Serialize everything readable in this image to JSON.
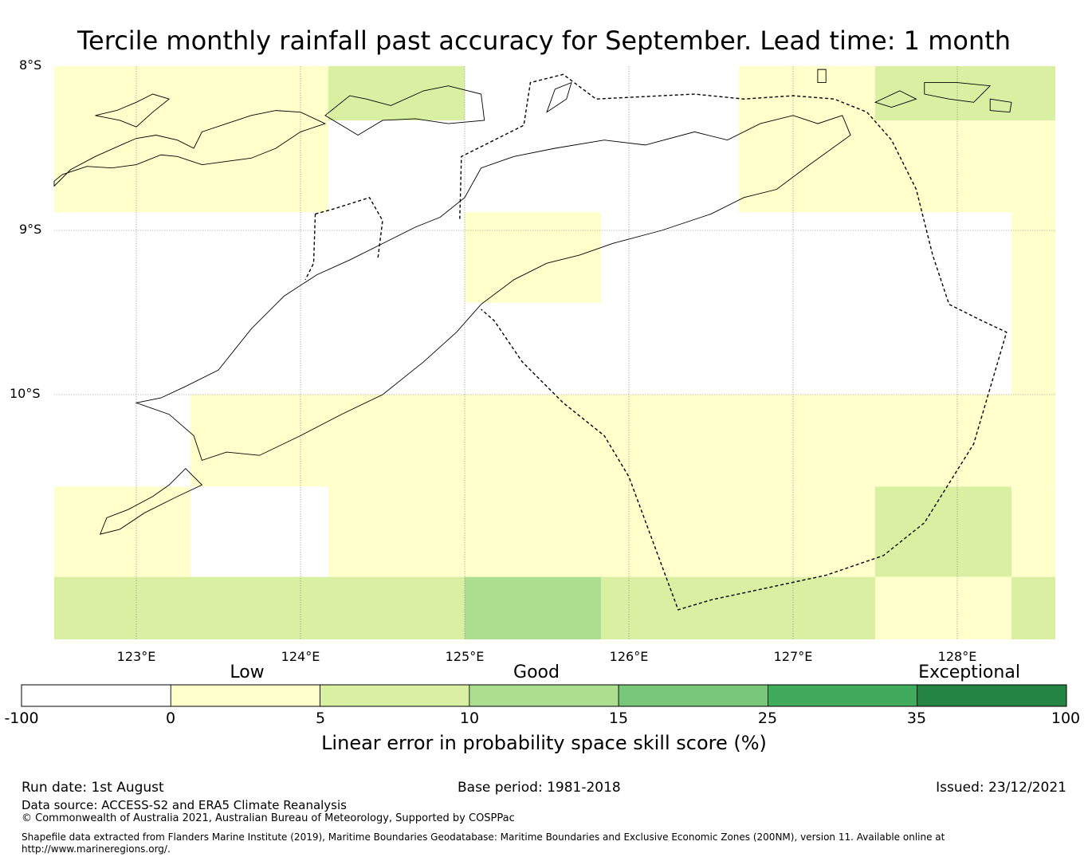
{
  "title": "Tercile monthly rainfall past accuracy for September. Lead time: 1 month",
  "map": {
    "lat_labels": [
      "8°S",
      "9°S",
      "10°S"
    ],
    "lon_labels": [
      "123°E",
      "124°E",
      "125°E",
      "126°E",
      "127°E",
      "128°E"
    ],
    "extent": {
      "lon_min": 122.5,
      "lon_max": 128.6,
      "lat_top": -8.0,
      "lat_bottom": -11.5
    },
    "colors": {
      "white": "#ffffff",
      "low": "#ffffcc",
      "good": "#d9f0a3",
      "good2": "#addd8e",
      "good3": "#78c679",
      "good4": "#41ab5d",
      "exceptional": "#238443"
    },
    "grid_cells": [
      {
        "lon0": 122.5,
        "lon1": 124.17,
        "lat0": -8.0,
        "lat1": -8.89,
        "class": "low"
      },
      {
        "lon0": 124.17,
        "lon1": 125.0,
        "lat0": -8.0,
        "lat1": -8.33,
        "class": "good"
      },
      {
        "lon0": 126.67,
        "lon1": 127.5,
        "lat0": -8.0,
        "lat1": -8.89,
        "class": "low"
      },
      {
        "lon0": 127.5,
        "lon1": 128.6,
        "lat0": -8.0,
        "lat1": -8.33,
        "class": "good"
      },
      {
        "lon0": 127.5,
        "lon1": 128.6,
        "lat0": -8.33,
        "lat1": -8.89,
        "class": "low"
      },
      {
        "lon0": 125.0,
        "lon1": 125.83,
        "lat0": -8.89,
        "lat1": -9.44,
        "class": "low"
      },
      {
        "lon0": 128.33,
        "lon1": 128.6,
        "lat0": -8.89,
        "lat1": -10.0,
        "class": "low"
      },
      {
        "lon0": 123.33,
        "lon1": 128.6,
        "lat0": -10.0,
        "lat1": -10.56,
        "class": "low"
      },
      {
        "lon0": 122.5,
        "lon1": 123.33,
        "lat0": -10.56,
        "lat1": -11.11,
        "class": "low"
      },
      {
        "lon0": 124.17,
        "lon1": 127.5,
        "lat0": -10.56,
        "lat1": -11.11,
        "class": "low"
      },
      {
        "lon0": 127.5,
        "lon1": 128.33,
        "lat0": -10.56,
        "lat1": -11.11,
        "class": "good"
      },
      {
        "lon0": 128.33,
        "lon1": 128.6,
        "lat0": -10.56,
        "lat1": -11.11,
        "class": "low"
      },
      {
        "lon0": 122.5,
        "lon1": 125.0,
        "lat0": -11.11,
        "lat1": -11.5,
        "class": "good"
      },
      {
        "lon0": 125.0,
        "lon1": 125.83,
        "lat0": -11.11,
        "lat1": -11.5,
        "class": "good2"
      },
      {
        "lon0": 125.83,
        "lon1": 127.5,
        "lat0": -11.11,
        "lat1": -11.5,
        "class": "good"
      },
      {
        "lon0": 127.5,
        "lon1": 128.33,
        "lat0": -11.11,
        "lat1": -11.5,
        "class": "low"
      },
      {
        "lon0": 128.33,
        "lon1": 128.6,
        "lat0": -11.11,
        "lat1": -11.5,
        "class": "good"
      }
    ],
    "coastlines": [
      [
        [
          122.5,
          -8.73
        ],
        [
          122.6,
          -8.63
        ],
        [
          122.75,
          -8.55
        ],
        [
          122.93,
          -8.47
        ],
        [
          123.0,
          -8.44
        ],
        [
          123.12,
          -8.42
        ],
        [
          123.25,
          -8.45
        ],
        [
          123.35,
          -8.5
        ],
        [
          123.4,
          -8.4
        ],
        [
          123.55,
          -8.35
        ],
        [
          123.7,
          -8.3
        ],
        [
          123.85,
          -8.27
        ],
        [
          124.0,
          -8.28
        ],
        [
          124.15,
          -8.35
        ],
        [
          124.0,
          -8.4
        ],
        [
          123.85,
          -8.5
        ],
        [
          123.7,
          -8.56
        ],
        [
          123.55,
          -8.58
        ],
        [
          123.4,
          -8.6
        ],
        [
          123.25,
          -8.55
        ],
        [
          123.15,
          -8.54
        ],
        [
          123.0,
          -8.6
        ],
        [
          122.85,
          -8.62
        ],
        [
          122.7,
          -8.61
        ],
        [
          122.55,
          -8.66
        ],
        [
          122.5,
          -8.7
        ]
      ],
      [
        [
          123.0,
          -8.37
        ],
        [
          122.9,
          -8.33
        ],
        [
          122.75,
          -8.3
        ],
        [
          122.88,
          -8.27
        ],
        [
          123.0,
          -8.22
        ],
        [
          123.1,
          -8.17
        ],
        [
          123.2,
          -8.2
        ],
        [
          123.1,
          -8.28
        ]
      ],
      [
        [
          124.15,
          -8.3
        ],
        [
          124.3,
          -8.18
        ],
        [
          124.4,
          -8.2
        ],
        [
          124.55,
          -8.24
        ],
        [
          124.75,
          -8.15
        ],
        [
          124.9,
          -8.12
        ],
        [
          125.1,
          -8.17
        ],
        [
          125.12,
          -8.33
        ],
        [
          124.9,
          -8.35
        ],
        [
          124.7,
          -8.32
        ],
        [
          124.5,
          -8.33
        ],
        [
          124.35,
          -8.42
        ]
      ],
      [
        [
          125.55,
          -8.14
        ],
        [
          125.65,
          -8.1
        ],
        [
          125.62,
          -8.2
        ],
        [
          125.5,
          -8.28
        ]
      ],
      [
        [
          123.0,
          -10.05
        ],
        [
          123.15,
          -10.02
        ],
        [
          123.3,
          -9.95
        ],
        [
          123.5,
          -9.85
        ],
        [
          123.7,
          -9.6
        ],
        [
          123.9,
          -9.4
        ],
        [
          124.1,
          -9.27
        ],
        [
          124.3,
          -9.18
        ],
        [
          124.5,
          -9.08
        ],
        [
          124.7,
          -8.98
        ],
        [
          124.85,
          -8.92
        ],
        [
          125.0,
          -8.8
        ],
        [
          125.1,
          -8.62
        ],
        [
          125.3,
          -8.55
        ],
        [
          125.55,
          -8.5
        ],
        [
          125.85,
          -8.45
        ],
        [
          126.1,
          -8.48
        ],
        [
          126.4,
          -8.4
        ],
        [
          126.6,
          -8.45
        ],
        [
          126.8,
          -8.35
        ],
        [
          127.0,
          -8.3
        ],
        [
          127.15,
          -8.35
        ],
        [
          127.3,
          -8.3
        ],
        [
          127.35,
          -8.42
        ],
        [
          127.1,
          -8.6
        ],
        [
          126.9,
          -8.75
        ],
        [
          126.7,
          -8.8
        ],
        [
          126.5,
          -8.9
        ],
        [
          126.2,
          -9.0
        ],
        [
          125.9,
          -9.08
        ],
        [
          125.7,
          -9.15
        ],
        [
          125.5,
          -9.2
        ],
        [
          125.3,
          -9.3
        ],
        [
          125.1,
          -9.45
        ],
        [
          124.95,
          -9.62
        ],
        [
          124.75,
          -9.8
        ],
        [
          124.5,
          -10.0
        ],
        [
          124.25,
          -10.12
        ],
        [
          124.0,
          -10.25
        ],
        [
          123.75,
          -10.37
        ],
        [
          123.55,
          -10.35
        ],
        [
          123.4,
          -10.4
        ],
        [
          123.35,
          -10.25
        ],
        [
          123.2,
          -10.12
        ],
        [
          123.0,
          -10.05
        ]
      ],
      [
        [
          123.3,
          -10.45
        ],
        [
          123.4,
          -10.55
        ],
        [
          123.25,
          -10.62
        ],
        [
          123.05,
          -10.72
        ],
        [
          122.9,
          -10.82
        ],
        [
          122.78,
          -10.85
        ],
        [
          122.82,
          -10.75
        ],
        [
          122.95,
          -10.7
        ],
        [
          123.1,
          -10.62
        ],
        [
          123.2,
          -10.55
        ]
      ],
      [
        [
          127.8,
          -8.1
        ],
        [
          128.0,
          -8.1
        ],
        [
          128.2,
          -8.12
        ],
        [
          128.1,
          -8.22
        ],
        [
          127.95,
          -8.2
        ],
        [
          127.8,
          -8.17
        ]
      ],
      [
        [
          127.65,
          -8.15
        ],
        [
          127.75,
          -8.2
        ],
        [
          127.6,
          -8.25
        ],
        [
          127.5,
          -8.22
        ]
      ],
      [
        [
          128.2,
          -8.2
        ],
        [
          128.33,
          -8.22
        ],
        [
          128.32,
          -8.28
        ],
        [
          128.2,
          -8.27
        ]
      ],
      [
        [
          127.15,
          -8.02
        ],
        [
          127.2,
          -8.02
        ],
        [
          127.2,
          -8.1
        ],
        [
          127.15,
          -8.1
        ]
      ]
    ],
    "boundaries": [
      [
        [
          124.09,
          -8.9
        ],
        [
          124.2,
          -8.87
        ],
        [
          124.42,
          -8.8
        ],
        [
          124.5,
          -8.94
        ],
        [
          124.47,
          -9.18
        ]
      ],
      [
        [
          124.09,
          -8.9
        ],
        [
          124.08,
          -9.2
        ],
        [
          124.03,
          -9.3
        ]
      ],
      [
        [
          124.97,
          -8.93
        ],
        [
          124.98,
          -8.55
        ],
        [
          125.36,
          -8.36
        ],
        [
          125.4,
          -8.1
        ],
        [
          125.6,
          -8.05
        ],
        [
          125.8,
          -8.2
        ],
        [
          126.4,
          -8.17
        ],
        [
          126.7,
          -8.2
        ],
        [
          127.0,
          -8.18
        ],
        [
          127.25,
          -8.2
        ],
        [
          127.45,
          -8.28
        ],
        [
          127.6,
          -8.45
        ],
        [
          127.75,
          -8.75
        ],
        [
          127.85,
          -9.15
        ],
        [
          127.95,
          -9.45
        ],
        [
          128.15,
          -9.55
        ],
        [
          128.3,
          -9.62
        ],
        [
          128.1,
          -10.3
        ],
        [
          127.8,
          -10.78
        ],
        [
          127.55,
          -10.98
        ],
        [
          127.2,
          -11.1
        ],
        [
          126.5,
          -11.25
        ],
        [
          126.3,
          -11.31
        ],
        [
          126.0,
          -10.5
        ],
        [
          125.85,
          -10.25
        ],
        [
          125.6,
          -10.05
        ],
        [
          125.35,
          -9.8
        ],
        [
          125.18,
          -9.55
        ],
        [
          125.1,
          -9.48
        ]
      ]
    ]
  },
  "colorbar": {
    "category_labels": [
      "Low",
      "Good",
      "Exceptional"
    ],
    "ticks": [
      "-100",
      "0",
      "5",
      "10",
      "15",
      "25",
      "35",
      "100"
    ],
    "segment_colors": [
      "#ffffff",
      "#ffffcc",
      "#d9f0a3",
      "#addd8e",
      "#78c679",
      "#41ab5d",
      "#238443"
    ],
    "title": "Linear error in probability space skill score (%)"
  },
  "footer": {
    "run_date": "Run date: 1st August",
    "base_period": "Base period: 1981-2018",
    "issued": "Issued: 23/12/2021",
    "data_source": "Data source: ACCESS-S2 and ERA5 Climate Reanalysis",
    "copyright": "© Commonwealth of Australia 2021, Australian Bureau of Meteorology, Supported by COSPPac",
    "shapefile_line1": "Shapefile data extracted from Flanders Marine Institute (2019), Maritime Boundaries Geodatabase: Maritime Boundaries and Exclusive Economic Zones (200NM), version 11. Available online at",
    "shapefile_line2": "http://www.marineregions.org/."
  }
}
